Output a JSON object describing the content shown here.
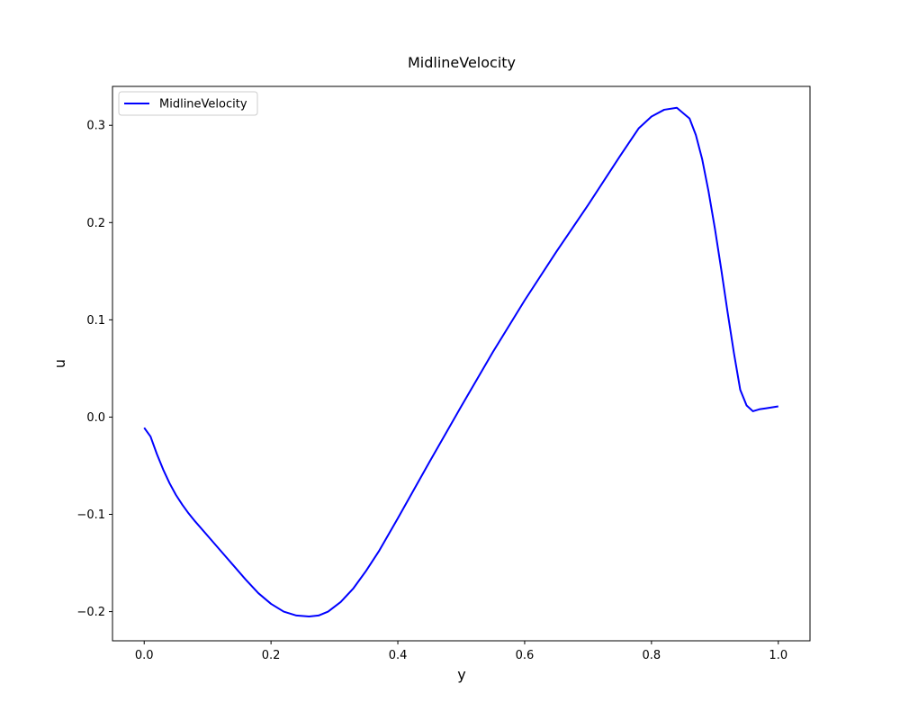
{
  "chart_data": {
    "type": "line",
    "title": "MidlineVelocity",
    "xlabel": "y",
    "ylabel": "u",
    "xlim": [
      -0.05,
      1.05
    ],
    "ylim": [
      -0.23,
      0.34
    ],
    "xticks": [
      0.0,
      0.2,
      0.4,
      0.6,
      0.8,
      1.0
    ],
    "xtick_labels": [
      "0.0",
      "0.2",
      "0.4",
      "0.6",
      "0.8",
      "1.0"
    ],
    "yticks": [
      -0.2,
      -0.1,
      0.0,
      0.1,
      0.2,
      0.3
    ],
    "ytick_labels": [
      "−0.2",
      "−0.1",
      "0.0",
      "0.1",
      "0.2",
      "0.3"
    ],
    "grid": false,
    "legend_position": "upper-left",
    "series": [
      {
        "name": "MidlineVelocity",
        "color": "#0000ff",
        "x": [
          0.0,
          0.01,
          0.02,
          0.03,
          0.04,
          0.05,
          0.06,
          0.07,
          0.08,
          0.1,
          0.12,
          0.14,
          0.16,
          0.18,
          0.2,
          0.22,
          0.24,
          0.26,
          0.275,
          0.29,
          0.31,
          0.33,
          0.35,
          0.37,
          0.4,
          0.45,
          0.5,
          0.55,
          0.6,
          0.65,
          0.7,
          0.75,
          0.78,
          0.8,
          0.82,
          0.84,
          0.86,
          0.87,
          0.88,
          0.89,
          0.9,
          0.91,
          0.92,
          0.93,
          0.94,
          0.95,
          0.96,
          0.97,
          0.98,
          0.99,
          1.0
        ],
        "y": [
          -0.011,
          -0.02,
          -0.038,
          -0.054,
          -0.068,
          -0.08,
          -0.09,
          -0.099,
          -0.107,
          -0.122,
          -0.137,
          -0.152,
          -0.167,
          -0.181,
          -0.192,
          -0.2,
          -0.204,
          -0.205,
          -0.204,
          -0.2,
          -0.19,
          -0.176,
          -0.158,
          -0.138,
          -0.104,
          -0.046,
          0.011,
          0.067,
          0.12,
          0.17,
          0.218,
          0.268,
          0.297,
          0.309,
          0.316,
          0.318,
          0.307,
          0.29,
          0.265,
          0.232,
          0.194,
          0.152,
          0.108,
          0.066,
          0.028,
          0.012,
          0.006,
          0.008,
          0.009,
          0.01,
          0.011
        ]
      }
    ]
  }
}
